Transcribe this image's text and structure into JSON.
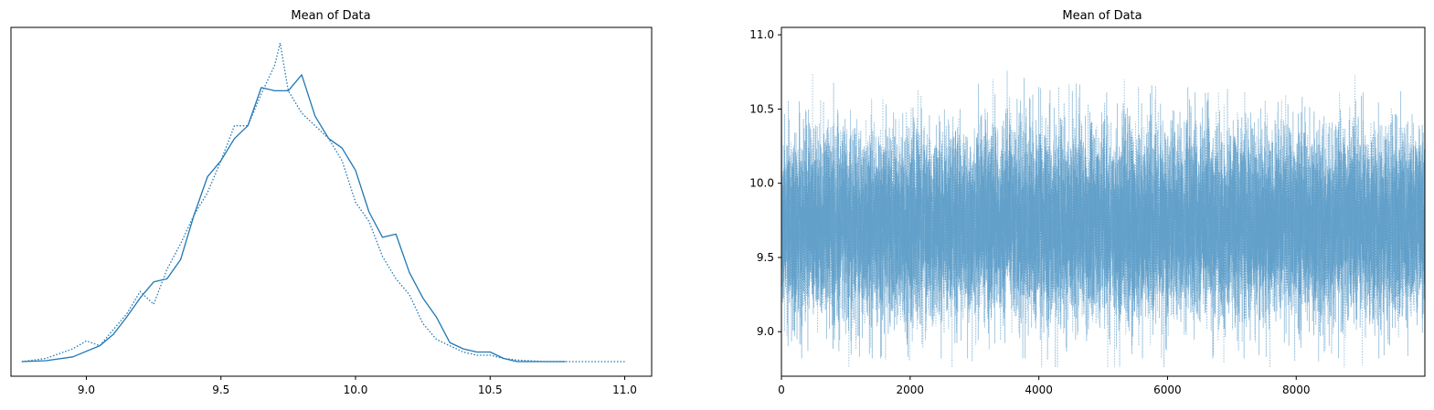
{
  "chart_data": [
    {
      "type": "line",
      "title": "Mean of Data",
      "xlabel": "",
      "ylabel": "",
      "xlim": [
        8.72,
        11.1
      ],
      "x_ticks": [
        9.0,
        9.5,
        10.0,
        10.5,
        11.0
      ],
      "x_tick_labels": [
        "9.0",
        "9.5",
        "10.0",
        "10.5",
        "11.0"
      ],
      "y_ticks_visible": false,
      "grid": false,
      "color": "#1f77b4",
      "series": [
        {
          "line_style": "solid",
          "x": [
            8.76,
            8.85,
            8.95,
            9.05,
            9.1,
            9.15,
            9.2,
            9.25,
            9.3,
            9.35,
            9.4,
            9.45,
            9.5,
            9.55,
            9.6,
            9.65,
            9.7,
            9.75,
            9.8,
            9.85,
            9.9,
            9.95,
            10.0,
            10.05,
            10.1,
            10.15,
            10.2,
            10.25,
            10.3,
            10.35,
            10.4,
            10.45,
            10.5,
            10.55,
            10.6,
            10.65,
            10.7,
            10.78
          ],
          "y": [
            0.0,
            0.003,
            0.015,
            0.05,
            0.085,
            0.14,
            0.2,
            0.25,
            0.26,
            0.32,
            0.46,
            0.58,
            0.63,
            0.7,
            0.74,
            0.86,
            0.85,
            0.85,
            0.9,
            0.77,
            0.7,
            0.67,
            0.6,
            0.47,
            0.39,
            0.4,
            0.28,
            0.2,
            0.14,
            0.06,
            0.04,
            0.03,
            0.03,
            0.01,
            0.0,
            0.0,
            0.0,
            0.0
          ]
        },
        {
          "line_style": "dotted",
          "x": [
            8.76,
            8.85,
            8.95,
            9.0,
            9.05,
            9.1,
            9.15,
            9.2,
            9.25,
            9.3,
            9.35,
            9.4,
            9.45,
            9.5,
            9.55,
            9.6,
            9.65,
            9.7,
            9.72,
            9.75,
            9.8,
            9.85,
            9.9,
            9.95,
            10.0,
            10.05,
            10.1,
            10.15,
            10.2,
            10.25,
            10.3,
            10.35,
            10.4,
            10.45,
            10.5,
            10.55,
            10.6,
            10.7,
            10.8,
            10.9,
            11.0
          ],
          "y": [
            0.0,
            0.01,
            0.04,
            0.065,
            0.05,
            0.1,
            0.15,
            0.22,
            0.18,
            0.29,
            0.37,
            0.46,
            0.53,
            0.63,
            0.74,
            0.74,
            0.84,
            0.93,
            1.0,
            0.85,
            0.78,
            0.74,
            0.7,
            0.63,
            0.5,
            0.44,
            0.33,
            0.26,
            0.21,
            0.12,
            0.07,
            0.05,
            0.03,
            0.02,
            0.02,
            0.01,
            0.005,
            0.0,
            0.0,
            0.0,
            0.0
          ]
        }
      ]
    },
    {
      "type": "line",
      "title": "Mean of Data",
      "xlabel": "",
      "ylabel": "",
      "xlim": [
        0,
        9999
      ],
      "ylim": [
        8.7,
        11.05
      ],
      "x_ticks": [
        0,
        2000,
        4000,
        6000,
        8000
      ],
      "x_tick_labels": [
        "0",
        "2000",
        "4000",
        "6000",
        "8000"
      ],
      "y_ticks": [
        9.0,
        9.5,
        10.0,
        10.5,
        11.0
      ],
      "y_tick_labels": [
        "9.0",
        "9.5",
        "10.0",
        "10.5",
        "11.0"
      ],
      "grid": false,
      "color": "#1f77b4",
      "opacity": 0.45,
      "series": [
        {
          "line_style": "solid",
          "n_samples": 10000,
          "mean": 9.73,
          "sd": 0.3,
          "min": 8.82,
          "max": 10.78
        },
        {
          "line_style": "dotted",
          "n_samples": 10000,
          "mean": 9.73,
          "sd": 0.3,
          "min": 8.76,
          "max": 11.02
        }
      ]
    }
  ]
}
